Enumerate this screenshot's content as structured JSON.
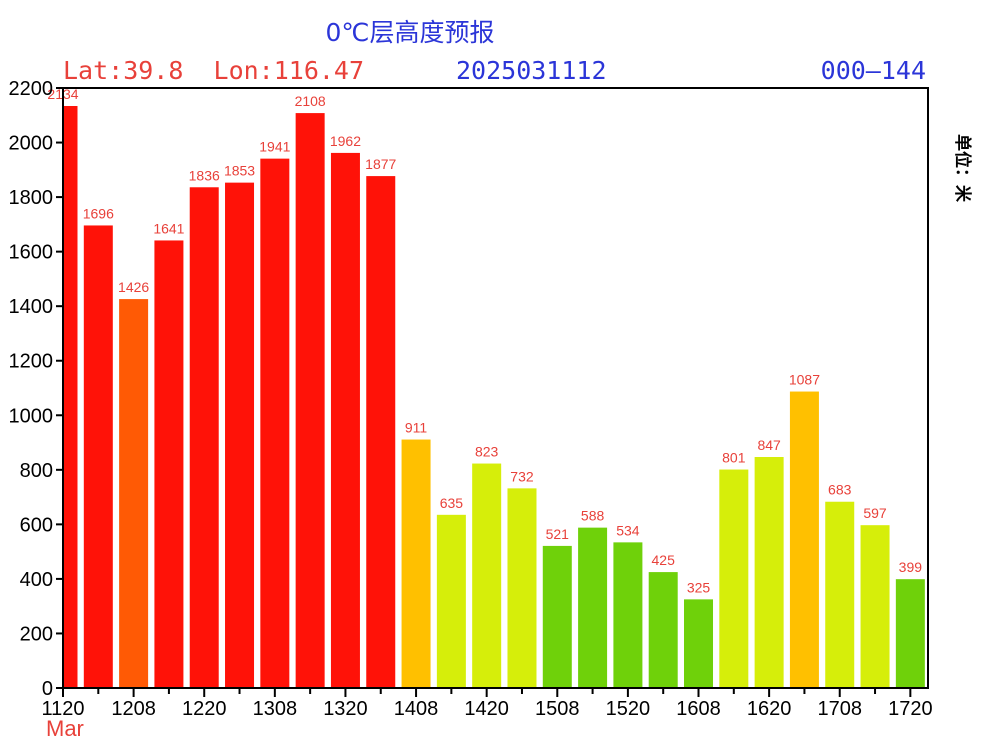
{
  "header": {
    "title": "0℃层高度预报",
    "location": "Lat:39.8  Lon:116.47",
    "init_time": "2025031112",
    "forecast_range": "000—144",
    "unit_label": "单位：米",
    "month_label": "Mar"
  },
  "colors": {
    "title": "#2b35d8",
    "location": "#e8413a",
    "init_time": "#2b35d8",
    "forecast_range": "#2b35d8",
    "month": "#e8413a",
    "value_label": "#e8413a"
  },
  "chart_data": {
    "type": "bar",
    "title": "0℃层高度预报",
    "xlabel": "",
    "ylabel": "",
    "ylim": [
      0,
      2200
    ],
    "yticks": [
      0,
      200,
      400,
      600,
      800,
      1000,
      1200,
      1400,
      1600,
      1800,
      2000,
      2200
    ],
    "xtick_labels": [
      "1120",
      "1208",
      "1220",
      "1308",
      "1320",
      "1408",
      "1420",
      "1508",
      "1520",
      "1608",
      "1620",
      "1708",
      "1720"
    ],
    "grid": false,
    "values": [
      2134,
      1696,
      1426,
      1641,
      1836,
      1853,
      1941,
      2108,
      1962,
      1877,
      911,
      635,
      823,
      732,
      521,
      588,
      534,
      425,
      325,
      801,
      847,
      1087,
      683,
      597,
      399
    ],
    "value_labels": [
      "2134",
      "1696",
      "1426",
      "1641",
      "1836",
      "1853",
      "1941",
      "2108",
      "1962",
      "1877",
      "911",
      "635",
      "823",
      "732",
      "521",
      "588",
      "534",
      "425",
      "325",
      "801",
      "847",
      "1087",
      "683",
      "597",
      "399"
    ],
    "bar_colors": [
      "#ff1208",
      "#ff1208",
      "#ff5a05",
      "#ff1208",
      "#ff1208",
      "#ff1208",
      "#ff1208",
      "#ff1208",
      "#ff1208",
      "#ff1208",
      "#ffc000",
      "#d6ee0a",
      "#d6ee0a",
      "#d6ee0a",
      "#6fd10a",
      "#6fd10a",
      "#6fd10a",
      "#6fd10a",
      "#6fd10a",
      "#d6ee0a",
      "#d6ee0a",
      "#ffc000",
      "#d6ee0a",
      "#d6ee0a",
      "#6fd10a"
    ]
  }
}
